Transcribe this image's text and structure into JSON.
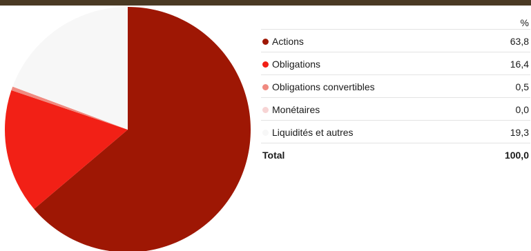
{
  "chart_data": {
    "type": "pie",
    "unit_header": "%",
    "categories": [
      "Actions",
      "Obligations",
      "Obligations convertibles",
      "Monétaires",
      "Liquidités et autres"
    ],
    "values": [
      63.8,
      16.4,
      0.5,
      0.0,
      19.3
    ],
    "value_labels": [
      "63,8",
      "16,4",
      "0,5",
      "0,0",
      "19,3"
    ],
    "colors": [
      "#9e1704",
      "#f22016",
      "#f08a80",
      "#f7d4d4",
      "#f7f7f7"
    ],
    "total_label": "Total",
    "total_value": "100,0"
  }
}
